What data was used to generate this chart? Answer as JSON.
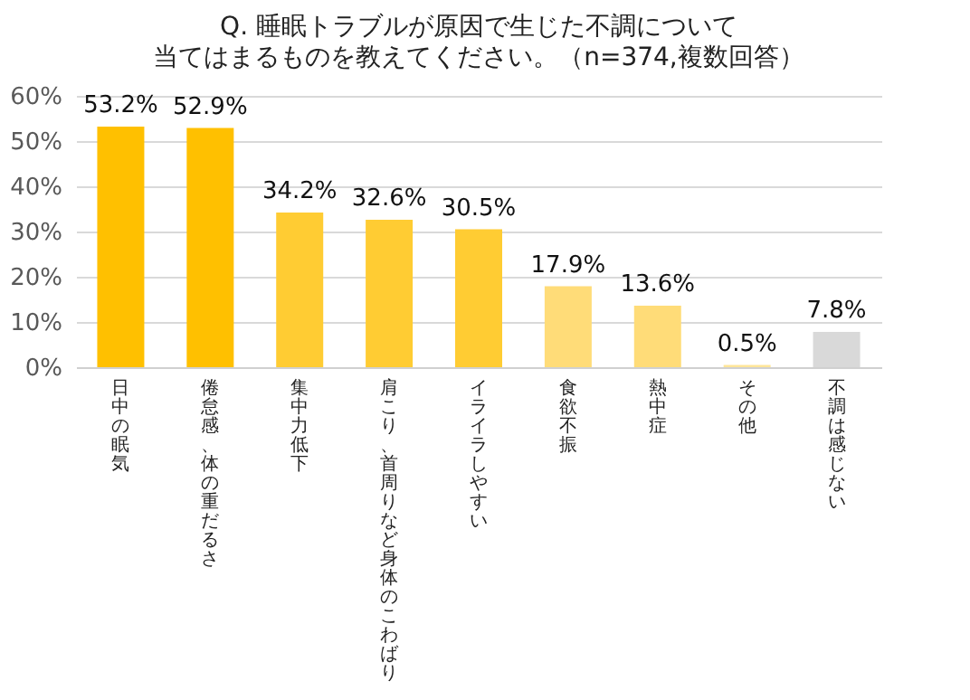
{
  "chart_data": {
    "type": "bar",
    "title": "Q. 睡眠トラブルが原因で生じた不調について",
    "subtitle": "当てはまるものを教えてください。（n=374,複数回答）",
    "categories": [
      "日中の眠気",
      "倦怠感、体の重だるさ",
      "集中力低下",
      "肩こり、首周りなど身体のこわばり",
      "イライラしやすい",
      "食欲不振",
      "熱中症",
      "その他",
      "不調は感じない"
    ],
    "values": [
      53.2,
      52.9,
      34.2,
      32.6,
      30.5,
      17.9,
      13.6,
      0.5,
      7.8
    ],
    "colors": [
      "#ffc000",
      "#ffc000",
      "#ffcc33",
      "#ffcc33",
      "#ffcc33",
      "#ffdc78",
      "#ffdc78",
      "#ffe699",
      "#d9d9d9"
    ],
    "value_labels": [
      "53.2%",
      "52.9%",
      "34.2%",
      "32.6%",
      "30.5%",
      "17.9%",
      "13.6%",
      "0.5%",
      "7.8%"
    ],
    "ylim": [
      0,
      60
    ],
    "yticks": [
      {
        "value": 0,
        "label": "0%"
      },
      {
        "value": 10,
        "label": "10%"
      },
      {
        "value": 20,
        "label": "20%"
      },
      {
        "value": 30,
        "label": "30%"
      },
      {
        "value": 40,
        "label": "40%"
      },
      {
        "value": 50,
        "label": "50%"
      },
      {
        "value": 60,
        "label": "60%"
      }
    ],
    "grid": "y"
  }
}
